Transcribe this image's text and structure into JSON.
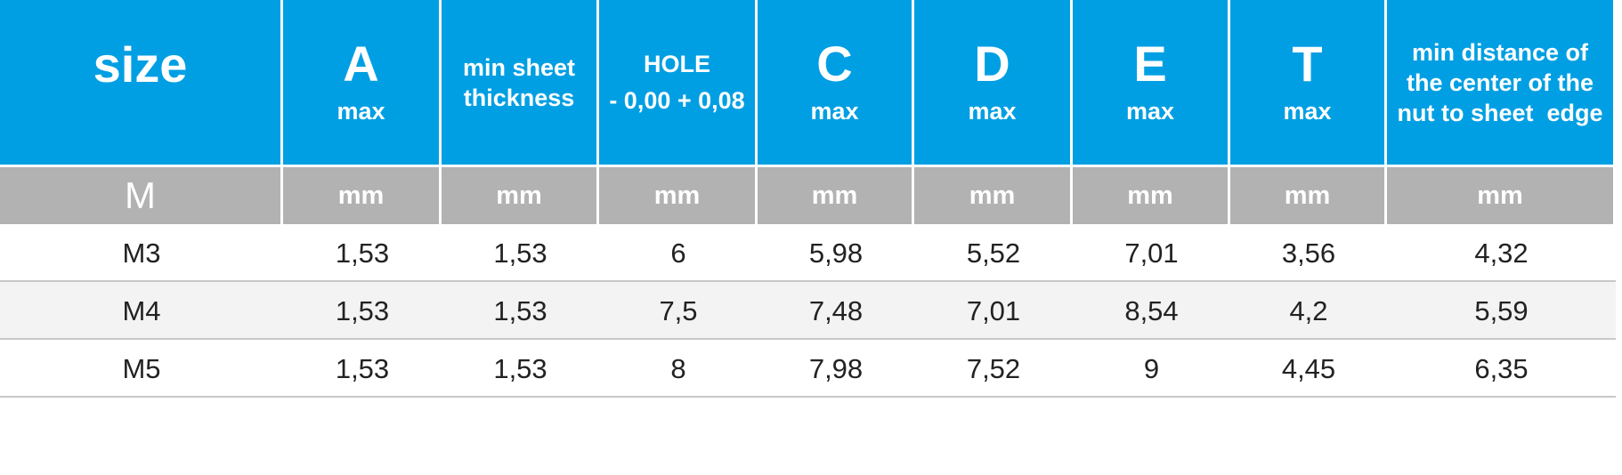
{
  "table": {
    "header": [
      {
        "title": "size"
      },
      {
        "title": "A",
        "sub": "max"
      },
      {
        "lines": [
          "min sheet",
          "thickness"
        ]
      },
      {
        "label": "HOLE",
        "sub": "- 0,00 + 0,08"
      },
      {
        "title": "C",
        "sub": "max"
      },
      {
        "title": "D",
        "sub": "max"
      },
      {
        "title": "E",
        "sub": "max"
      },
      {
        "title": "T",
        "sub": "max"
      },
      {
        "lines": [
          "min distance of",
          "the center of the",
          "nut to sheet  edge"
        ]
      }
    ],
    "units": [
      "M",
      "mm",
      "mm",
      "mm",
      "mm",
      "mm",
      "mm",
      "mm",
      "mm"
    ],
    "rows": [
      [
        "M3",
        "1,53",
        "1,53",
        "6",
        "5,98",
        "5,52",
        "7,01",
        "3,56",
        "4,32"
      ],
      [
        "M4",
        "1,53",
        "1,53",
        "7,5",
        "7,48",
        "7,01",
        "8,54",
        "4,2",
        "5,59"
      ],
      [
        "M5",
        "1,53",
        "1,53",
        "8",
        "7,98",
        "7,52",
        "9",
        "4,45",
        "6,35"
      ]
    ]
  }
}
